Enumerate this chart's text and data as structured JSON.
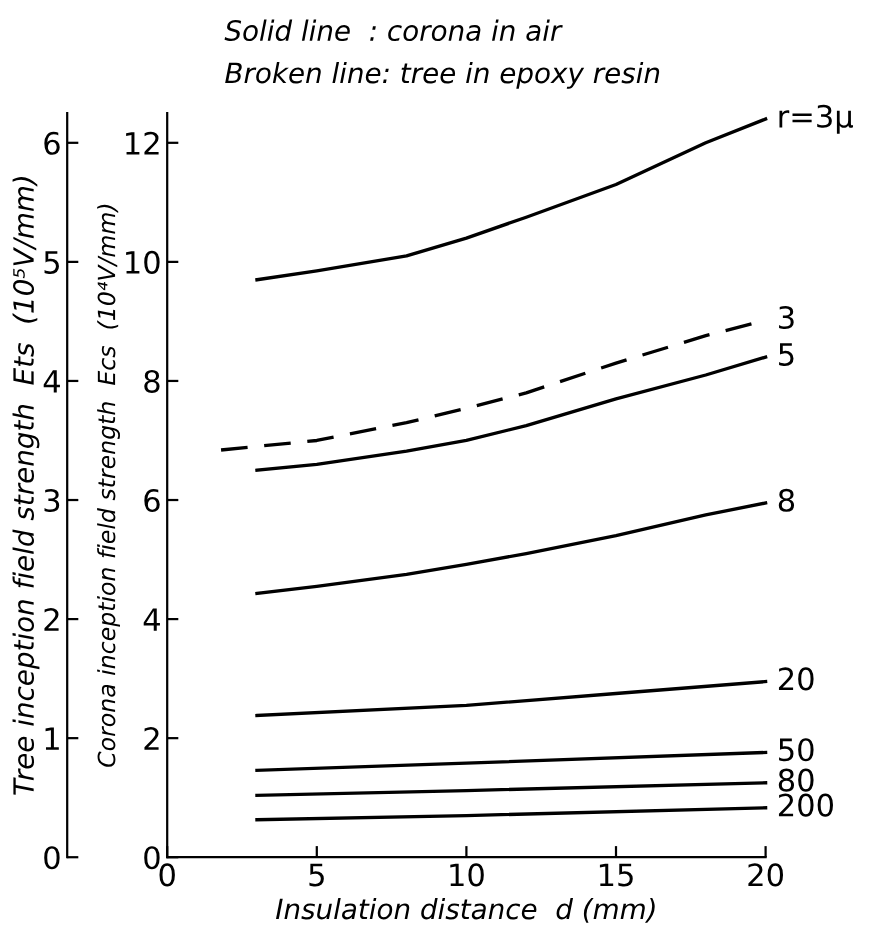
{
  "chart_data": {
    "type": "line",
    "xlabel": "Insulation distance  d (mm)",
    "ylabel": "Corona inception field strength  Ecs  (10⁴V/mm)",
    "y2label": "Tree inception field strength  Ets  (10⁵V/mm)",
    "annotations": [
      "Solid line  : corona in air",
      "Broken line: tree in epoxy resin"
    ],
    "xlim": [
      0,
      20
    ],
    "xticks": [
      0,
      5,
      10,
      15,
      20
    ],
    "ylim": [
      0,
      12.5
    ],
    "yticks": [
      0,
      2,
      4,
      6,
      8,
      10,
      12
    ],
    "y2lim": [
      0,
      6.25
    ],
    "y2ticks": [
      0,
      1,
      2,
      3,
      4,
      5,
      6
    ],
    "grid": false,
    "legend": false,
    "marker": "none",
    "series": [
      {
        "name": "r=3μ",
        "color": "#000000",
        "line_style": "solid",
        "x": [
          3,
          5,
          8,
          10,
          12,
          15,
          18,
          20
        ],
        "values": [
          9.7,
          9.85,
          10.1,
          10.4,
          10.75,
          11.3,
          12.0,
          12.4
        ]
      },
      {
        "name": "3",
        "color": "#000000",
        "line_style": "dashed",
        "axis": "y2",
        "x": [
          1.8,
          5,
          8,
          10,
          12,
          15,
          18,
          20
        ],
        "values": [
          3.42,
          3.5,
          3.65,
          3.77,
          3.9,
          4.15,
          4.38,
          4.51
        ]
      },
      {
        "name": "5",
        "color": "#000000",
        "line_style": "solid",
        "x": [
          3,
          5,
          8,
          10,
          12,
          15,
          18,
          20
        ],
        "values": [
          6.5,
          6.6,
          6.82,
          7.0,
          7.25,
          7.7,
          8.1,
          8.4
        ]
      },
      {
        "name": "8",
        "color": "#000000",
        "line_style": "solid",
        "x": [
          3,
          5,
          8,
          10,
          12,
          15,
          18,
          20
        ],
        "values": [
          4.43,
          4.55,
          4.75,
          4.92,
          5.1,
          5.4,
          5.75,
          5.95
        ]
      },
      {
        "name": "20",
        "color": "#000000",
        "line_style": "solid",
        "x": [
          3,
          10,
          15,
          20
        ],
        "values": [
          2.38,
          2.55,
          2.75,
          2.95
        ]
      },
      {
        "name": "50",
        "color": "#000000",
        "line_style": "solid",
        "x": [
          3,
          10,
          20
        ],
        "values": [
          1.46,
          1.58,
          1.76
        ]
      },
      {
        "name": "80",
        "color": "#000000",
        "line_style": "solid",
        "x": [
          3,
          10,
          20
        ],
        "values": [
          1.04,
          1.12,
          1.25
        ]
      },
      {
        "name": "200",
        "color": "#000000",
        "line_style": "solid",
        "x": [
          3,
          10,
          20
        ],
        "values": [
          0.63,
          0.7,
          0.83
        ]
      }
    ]
  }
}
